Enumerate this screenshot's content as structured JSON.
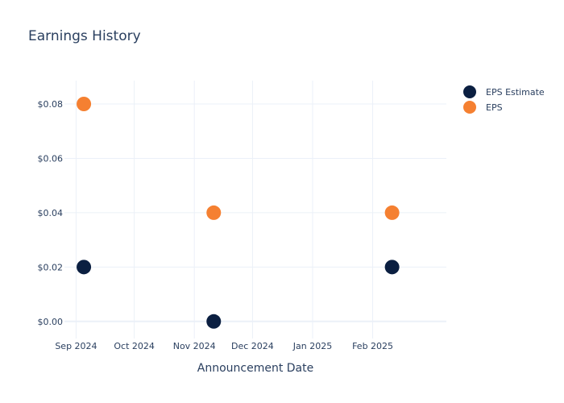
{
  "chart_data": {
    "type": "scatter",
    "title": "Earnings History",
    "xlabel": "Announcement Date",
    "ylabel": "",
    "x_ticks": [
      {
        "date": "2024-09-01",
        "label": "Sep 2024"
      },
      {
        "date": "2024-10-01",
        "label": "Oct 2024"
      },
      {
        "date": "2024-11-01",
        "label": "Nov 2024"
      },
      {
        "date": "2024-12-01",
        "label": "Dec 2024"
      },
      {
        "date": "2025-01-01",
        "label": "Jan 2025"
      },
      {
        "date": "2025-02-01",
        "label": "Feb 2025"
      }
    ],
    "xlim": [
      "2024-08-26",
      "2025-03-11"
    ],
    "y_ticks": [
      {
        "value": 0.0,
        "label": "$0.00"
      },
      {
        "value": 0.02,
        "label": "$0.02"
      },
      {
        "value": 0.04,
        "label": "$0.04"
      },
      {
        "value": 0.06,
        "label": "$0.06"
      },
      {
        "value": 0.08,
        "label": "$0.08"
      }
    ],
    "ylim": [
      -0.0063,
      0.0886
    ],
    "grid": true,
    "legend_position": "top-right",
    "series": [
      {
        "name": "EPS Estimate",
        "color": "#0b1f41",
        "points": [
          {
            "x": "2024-09-05",
            "y": 0.02
          },
          {
            "x": "2024-11-11",
            "y": 0.0
          },
          {
            "x": "2025-02-11",
            "y": 0.02
          }
        ]
      },
      {
        "name": "EPS",
        "color": "#f58031",
        "points": [
          {
            "x": "2024-09-05",
            "y": 0.08
          },
          {
            "x": "2024-11-11",
            "y": 0.04
          },
          {
            "x": "2025-02-11",
            "y": 0.04
          }
        ]
      }
    ]
  }
}
